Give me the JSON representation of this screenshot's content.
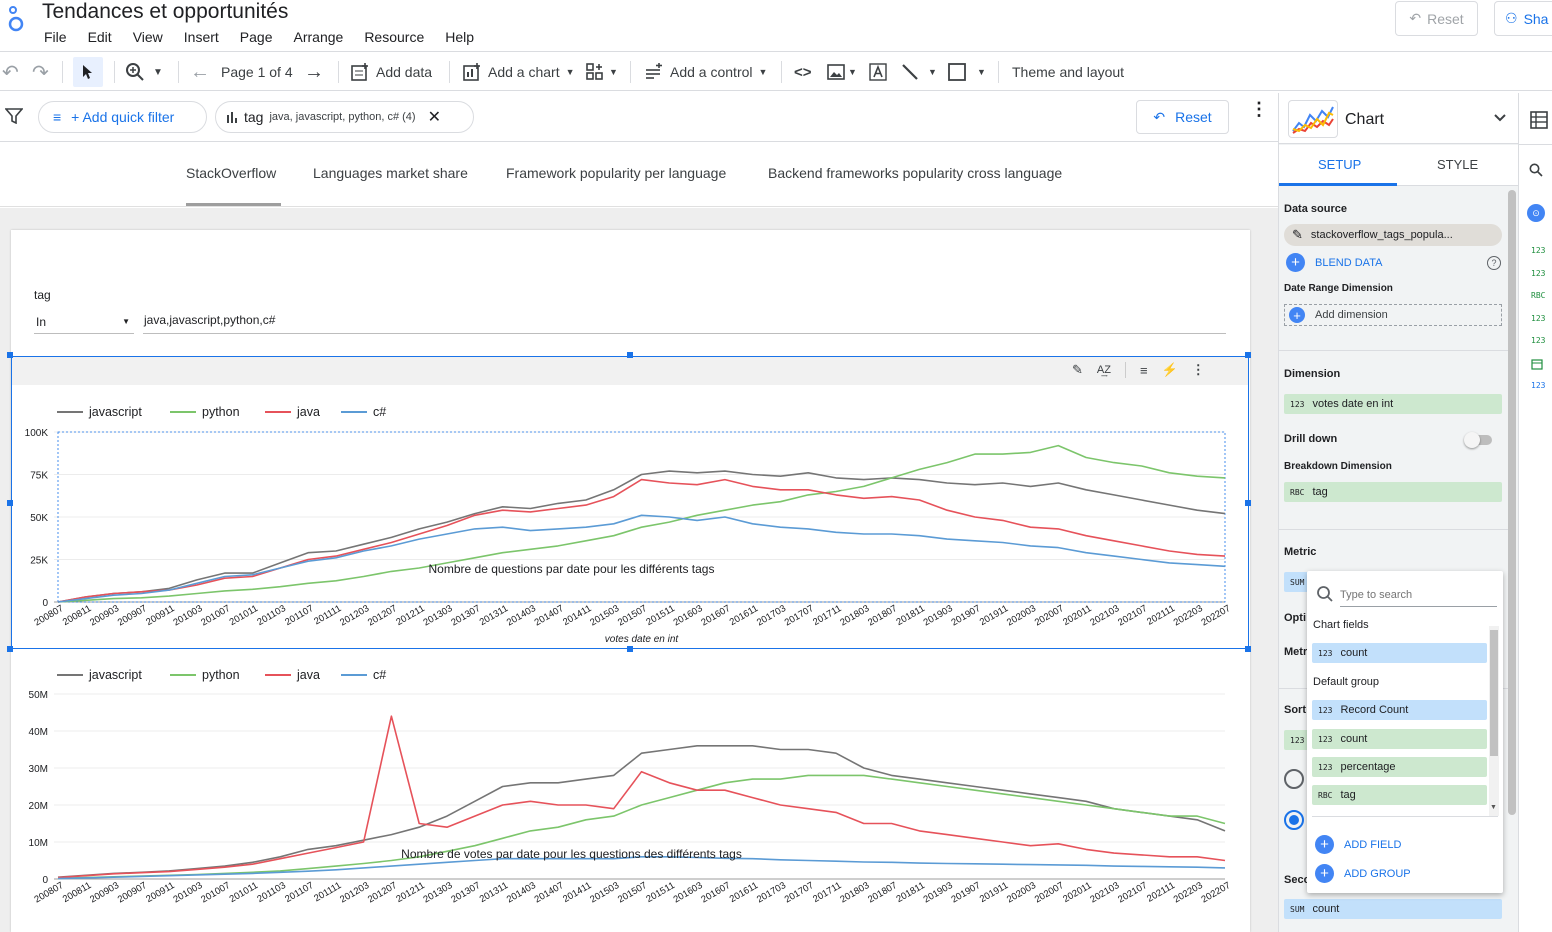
{
  "app": {
    "title": "Tendances et opportunités",
    "reset_label": "Reset",
    "share_label": "Sha"
  },
  "menu": [
    "File",
    "Edit",
    "View",
    "Insert",
    "Page",
    "Arrange",
    "Resource",
    "Help"
  ],
  "toolbar": {
    "page": "Page 1 of 4",
    "add_data": "Add data",
    "add_chart": "Add a chart",
    "add_control": "Add a control",
    "theme": "Theme and layout"
  },
  "filterbar": {
    "add_quick_filter": "+ Add quick filter",
    "chip_name": "tag",
    "chip_values": "java, javascript, python, c# (4)",
    "reset": "Reset"
  },
  "tabs": [
    "StackOverflow",
    "Languages market share",
    "Framework popularity per language",
    "Backend frameworks popularity cross language"
  ],
  "control": {
    "label": "tag",
    "operator": "In",
    "values": "java,javascript,python,c#"
  },
  "colors": {
    "javascript": "#757575",
    "python": "#7cc56b",
    "java": "#e6525a",
    "c#": "#5b9bd5",
    "accent": "#1a73e8"
  },
  "chart_data": [
    {
      "type": "line",
      "title": "Nombre de questions par date pour les différents tags",
      "xlabel": "votes date en int",
      "yticks": [
        "0",
        "25K",
        "50K",
        "75K",
        "100K"
      ],
      "ylim": [
        0,
        100000
      ],
      "x_tick_labels": [
        "200807",
        "200811",
        "200903",
        "200907",
        "200911",
        "201003",
        "201007",
        "201011",
        "201103",
        "201107",
        "201111",
        "201203",
        "201207",
        "201211",
        "201303",
        "201307",
        "201311",
        "201403",
        "201407",
        "201411",
        "201503",
        "201507",
        "201511",
        "201603",
        "201607",
        "201611",
        "201703",
        "201707",
        "201711",
        "201803",
        "201807",
        "201811",
        "201903",
        "201907",
        "201911",
        "202003",
        "202007",
        "202011",
        "202103",
        "202107",
        "202111",
        "202203",
        "202207"
      ],
      "series": [
        {
          "name": "javascript",
          "values": [
            0,
            3000,
            5000,
            6000,
            8000,
            13000,
            17000,
            17000,
            23000,
            29000,
            30000,
            34000,
            38000,
            43000,
            47000,
            52000,
            56000,
            55000,
            58000,
            60000,
            66000,
            75000,
            77000,
            76000,
            77000,
            75000,
            74000,
            76000,
            73000,
            72000,
            73000,
            72000,
            70000,
            69000,
            70000,
            68000,
            70000,
            66000,
            63000,
            60000,
            57000,
            54000,
            52000
          ]
        },
        {
          "name": "python",
          "values": [
            0,
            1000,
            2000,
            2500,
            3500,
            5000,
            6500,
            7500,
            9000,
            11000,
            12500,
            15000,
            18000,
            20000,
            23000,
            26000,
            29000,
            31000,
            33000,
            36000,
            39000,
            44000,
            47000,
            51000,
            54000,
            57000,
            59000,
            63000,
            65000,
            68000,
            73000,
            78000,
            82000,
            87000,
            87000,
            88000,
            92000,
            85000,
            82000,
            80000,
            76000,
            74000,
            73000
          ]
        },
        {
          "name": "java",
          "values": [
            0,
            3000,
            5000,
            6000,
            7000,
            10000,
            14000,
            15000,
            20000,
            25000,
            27000,
            31000,
            35000,
            40000,
            45000,
            51000,
            54000,
            53000,
            55000,
            57000,
            62000,
            72000,
            70000,
            69000,
            72000,
            68000,
            66000,
            66000,
            63000,
            61000,
            62000,
            60000,
            54000,
            50000,
            48000,
            44000,
            43000,
            39000,
            36000,
            33000,
            30000,
            28000,
            27000
          ]
        },
        {
          "name": "c#",
          "values": [
            0,
            2000,
            4000,
            5000,
            7000,
            11000,
            15000,
            16000,
            20000,
            24000,
            26000,
            30000,
            33000,
            37000,
            40000,
            43000,
            44000,
            42000,
            43000,
            44000,
            46000,
            51000,
            50000,
            48000,
            50000,
            46000,
            44000,
            43000,
            41000,
            40000,
            40000,
            39000,
            37000,
            36000,
            35000,
            33000,
            32000,
            29000,
            27000,
            25000,
            23000,
            22000,
            21000
          ]
        }
      ]
    },
    {
      "type": "line",
      "title": "Nombre de votes par date pour les questions des différents tags",
      "xlabel": "",
      "yticks": [
        "0",
        "10M",
        "20M",
        "30M",
        "40M",
        "50M"
      ],
      "ylim": [
        0,
        50000000
      ],
      "x_tick_labels": [
        "200807",
        "200811",
        "200903",
        "200907",
        "200911",
        "201003",
        "201007",
        "201011",
        "201103",
        "201107",
        "201111",
        "201203",
        "201207",
        "201211",
        "201303",
        "201307",
        "201311",
        "201403",
        "201407",
        "201411",
        "201503",
        "201507",
        "201511",
        "201603",
        "201607",
        "201611",
        "201703",
        "201707",
        "201711",
        "201803",
        "201807",
        "201811",
        "201903",
        "201907",
        "201911",
        "202003",
        "202007",
        "202011",
        "202103",
        "202107",
        "202111",
        "202203",
        "202207"
      ],
      "series": [
        {
          "name": "javascript",
          "values": [
            500000,
            1000000,
            1500000,
            1800000,
            2200000,
            2800000,
            3500000,
            4500000,
            6000000,
            8000000,
            9000000,
            10500000,
            12000000,
            14000000,
            17000000,
            21000000,
            25000000,
            26000000,
            26000000,
            27000000,
            28000000,
            34000000,
            35000000,
            36000000,
            36000000,
            36000000,
            35000000,
            35000000,
            34000000,
            30000000,
            28000000,
            27000000,
            26000000,
            25000000,
            24000000,
            23000000,
            22000000,
            21000000,
            19000000,
            18000000,
            17000000,
            16000000,
            13000000
          ]
        },
        {
          "name": "python",
          "values": [
            200000,
            400000,
            600000,
            800000,
            1000000,
            1200000,
            1500000,
            1800000,
            2200000,
            2800000,
            3500000,
            4200000,
            5000000,
            6000000,
            7500000,
            9000000,
            11000000,
            13000000,
            14000000,
            16000000,
            17000000,
            20000000,
            22000000,
            24000000,
            26000000,
            27000000,
            27000000,
            28000000,
            28000000,
            28000000,
            27000000,
            26000000,
            25000000,
            24000000,
            23000000,
            22000000,
            21000000,
            20000000,
            19000000,
            18000000,
            17000000,
            17000000,
            15000000
          ]
        },
        {
          "name": "java",
          "values": [
            400000,
            900000,
            1400000,
            1700000,
            2000000,
            2600000,
            3200000,
            4000000,
            5500000,
            7000000,
            8500000,
            10000000,
            44000000,
            15000000,
            14000000,
            17000000,
            20000000,
            21000000,
            20000000,
            20000000,
            19000000,
            29000000,
            26000000,
            24000000,
            24000000,
            22000000,
            20000000,
            19000000,
            18000000,
            15000000,
            15000000,
            13000000,
            12000000,
            11000000,
            10000000,
            9000000,
            9500000,
            8000000,
            7000000,
            6500000,
            6000000,
            6000000,
            5000000
          ]
        },
        {
          "name": "c#",
          "values": [
            100000,
            300000,
            500000,
            700000,
            900000,
            1100000,
            1300000,
            1500000,
            1800000,
            2100000,
            2500000,
            3000000,
            3500000,
            4000000,
            4500000,
            5000000,
            5500000,
            5500000,
            5500000,
            5500000,
            5500000,
            6000000,
            6000000,
            5800000,
            5600000,
            5500000,
            5200000,
            5000000,
            4800000,
            4600000,
            4500000,
            4300000,
            4200000,
            4100000,
            4000000,
            3900000,
            3800000,
            3700000,
            3500000,
            3400000,
            3300000,
            3200000,
            3000000
          ]
        }
      ]
    }
  ],
  "panel": {
    "title": "Chart",
    "tab_setup": "SETUP",
    "tab_style": "STYLE",
    "data_source_label": "Data source",
    "data_source": "stackoverflow_tags_popula...",
    "blend": "BLEND DATA",
    "date_range_label": "Date Range Dimension",
    "add_dimension": "Add dimension",
    "dimension_label": "Dimension",
    "dimension_type": "123",
    "dimension": "votes date en int",
    "drill_down": "Drill down",
    "breakdown_label": "Breakdown Dimension",
    "breakdown_type": "RBC",
    "breakdown": "tag",
    "metric_label": "Metric",
    "metric_type": "SUM",
    "opt_label": "Opti",
    "metr_label": "Metr",
    "sort_label": "Sort",
    "sort_type": "123",
    "seco_label": "Seco",
    "secondary_type": "SUM",
    "secondary": "count"
  },
  "dropdown": {
    "search_placeholder": "Type to search",
    "chart_fields": "Chart fields",
    "cf_type": "123",
    "cf_item": "count",
    "default_group": "Default group",
    "items": [
      {
        "type": "123",
        "label": "Record Count"
      },
      {
        "type": "123",
        "label": "count"
      },
      {
        "type": "123",
        "label": "percentage"
      },
      {
        "type": "RBC",
        "label": "tag"
      }
    ],
    "add_field": "ADD FIELD",
    "add_group": "ADD GROUP"
  },
  "rail": {
    "types": [
      "123",
      "123",
      "RBC",
      "123",
      "123",
      "",
      "123"
    ]
  }
}
